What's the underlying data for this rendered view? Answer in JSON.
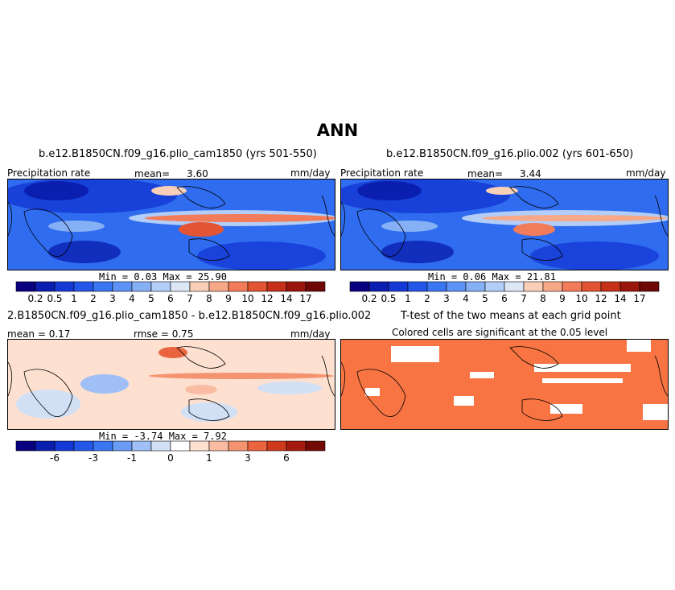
{
  "figure": {
    "title": "ANN"
  },
  "panels": {
    "p1": {
      "title": "b.e12.B1850CN.f09_g16.plio_cam1850 (yrs 501-550)",
      "left_label": "Precipitation rate",
      "mean_label": "mean=",
      "mean_value": "3.60",
      "units": "mm/day",
      "minmax": "Min =   0.03 Max =  25.90"
    },
    "p2": {
      "title": "b.e12.B1850CN.f09_g16.plio.002 (yrs 601-650)",
      "left_label": "Precipitation rate",
      "mean_label": "mean=",
      "mean_value": "3.44",
      "units": "mm/day",
      "minmax": "Min =   0.06 Max =  21.81"
    },
    "p3": {
      "title": "2.B1850CN.f09_g16.plio_cam1850 - b.e12.B1850CN.f09_g16.plio.002",
      "left_label": "mean =  0.17",
      "mid_label": "rmse =   0.75",
      "units": "mm/day",
      "minmax": "Min =  -3.74 Max =   7.92"
    },
    "p4": {
      "title": "T-test of the two means at each grid point",
      "subtitle": "Colored cells are significant at the 0.05 level",
      "significant_color": "#f87543"
    }
  },
  "chart_data": [
    {
      "type": "heatmap",
      "title": "b.e12.B1850CN.f09_g16.plio_cam1850 (yrs 501-550)",
      "variable": "Precipitation rate",
      "units": "mm/day",
      "mean": 3.6,
      "min": 0.03,
      "max": 25.9,
      "colorbar_levels": [
        "0.2",
        "0.5",
        "1",
        "2",
        "3",
        "4",
        "5",
        "6",
        "7",
        "8",
        "9",
        "10",
        "12",
        "14",
        "17"
      ],
      "colorbar_colors": [
        "#08007e",
        "#0a1fb0",
        "#1439d6",
        "#2357ea",
        "#3b76f2",
        "#5e93f5",
        "#86b0f6",
        "#b2cdf7",
        "#dce6f5",
        "#f8cfb7",
        "#f7a888",
        "#f27c59",
        "#e35434",
        "#c53119",
        "#9a160c",
        "#6e0806"
      ]
    },
    {
      "type": "heatmap",
      "title": "b.e12.B1850CN.f09_g16.plio.002 (yrs 601-650)",
      "variable": "Precipitation rate",
      "units": "mm/day",
      "mean": 3.44,
      "min": 0.06,
      "max": 21.81,
      "colorbar_levels": [
        "0.2",
        "0.5",
        "1",
        "2",
        "3",
        "4",
        "5",
        "6",
        "7",
        "8",
        "9",
        "10",
        "12",
        "14",
        "17"
      ],
      "colorbar_colors": [
        "#08007e",
        "#0a1fb0",
        "#1439d6",
        "#2357ea",
        "#3b76f2",
        "#5e93f5",
        "#86b0f6",
        "#b2cdf7",
        "#dce6f5",
        "#f8cfb7",
        "#f7a888",
        "#f27c59",
        "#e35434",
        "#c53119",
        "#9a160c",
        "#6e0806"
      ]
    },
    {
      "type": "heatmap",
      "title": "2.B1850CN.f09_g16.plio_cam1850 - b.e12.B1850CN.f09_g16.plio.002",
      "units": "mm/day",
      "mean": 0.17,
      "rmse": 0.75,
      "min": -3.74,
      "max": 7.92,
      "colorbar_tick_labels": [
        "-6",
        "-3",
        "-1",
        "0",
        "1",
        "3",
        "6"
      ],
      "colorbar_colors": [
        "#08007e",
        "#0a1fb0",
        "#1439d6",
        "#2357ea",
        "#3b76f2",
        "#6a9bf5",
        "#9fbff6",
        "#d2e0f6",
        "#ffffff",
        "#fde0d0",
        "#f9bca2",
        "#f49370",
        "#e9643f",
        "#cf3a1c",
        "#a61a0d",
        "#740a06"
      ]
    },
    {
      "type": "heatmap",
      "title": "T-test of the two means at each grid point",
      "subtitle": "Colored cells are significant at the 0.05 level",
      "significant_color": "#f87543",
      "significance_level": 0.05
    }
  ]
}
